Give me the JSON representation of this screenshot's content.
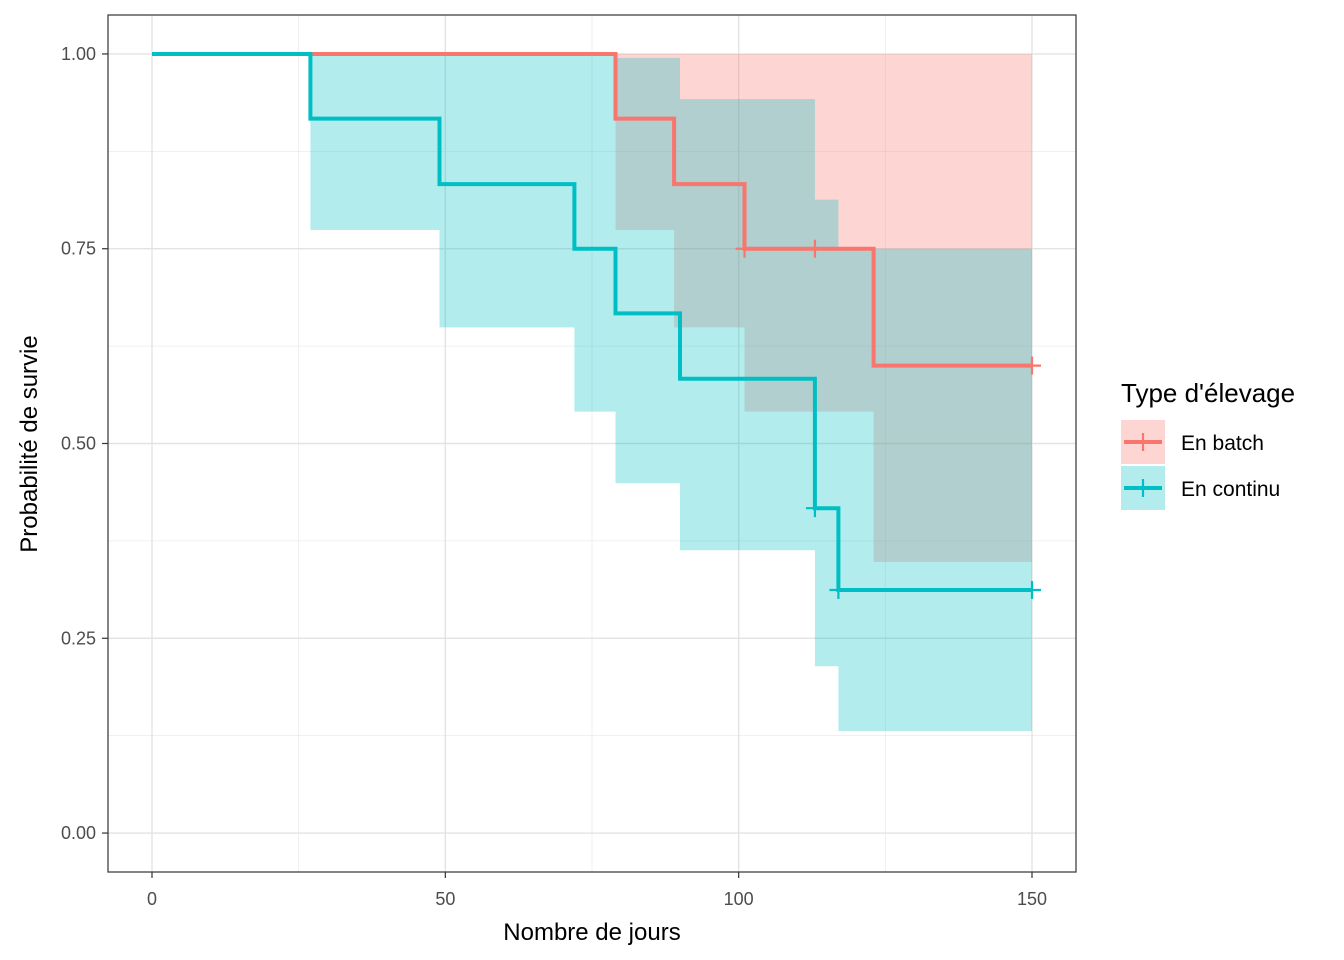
{
  "chart_data": {
    "type": "line",
    "subtype": "kaplan-meier-step",
    "title": "",
    "xlabel": "Nombre de jours",
    "ylabel": "Probabilité de survie",
    "xlim": [
      -7.5,
      157.5
    ],
    "ylim": [
      -0.05,
      1.05
    ],
    "x_ticks": [
      0,
      50,
      100,
      150
    ],
    "x_tick_labels": [
      "0",
      "50",
      "100",
      "150"
    ],
    "y_ticks": [
      0,
      0.25,
      0.5,
      0.75,
      1.0
    ],
    "y_tick_labels": [
      "0.00",
      "0.25",
      "0.50",
      "0.75",
      "1.00"
    ],
    "grid": true,
    "legend": {
      "title": "Type d'élevage",
      "position": "right"
    },
    "series": [
      {
        "name": "En batch",
        "color": "#F8766D",
        "x": [
          0,
          79,
          89,
          101,
          123,
          150
        ],
        "y": [
          1.0,
          0.917,
          0.833,
          0.75,
          0.6,
          0.6
        ],
        "lower": [
          1.0,
          0.774,
          0.649,
          0.541,
          0.348,
          0.348
        ],
        "upper": [
          1.0,
          1.0,
          1.0,
          1.0,
          1.0,
          1.0
        ],
        "censor_x": [
          101,
          113,
          150
        ],
        "censor_y": [
          0.75,
          0.75,
          0.6
        ]
      },
      {
        "name": "En continu",
        "color": "#00BFC4",
        "x": [
          0,
          27,
          49,
          72,
          79,
          90,
          113,
          117,
          150
        ],
        "y": [
          1.0,
          0.917,
          0.833,
          0.75,
          0.667,
          0.583,
          0.417,
          0.312,
          0.312
        ],
        "lower": [
          1.0,
          0.774,
          0.649,
          0.541,
          0.449,
          0.363,
          0.214,
          0.131,
          0.131
        ],
        "upper": [
          1.0,
          1.0,
          1.0,
          1.0,
          0.995,
          0.942,
          0.813,
          0.75,
          0.75
        ],
        "censor_x": [
          113,
          117,
          150
        ],
        "censor_y": [
          0.417,
          0.312,
          0.312
        ]
      }
    ]
  }
}
